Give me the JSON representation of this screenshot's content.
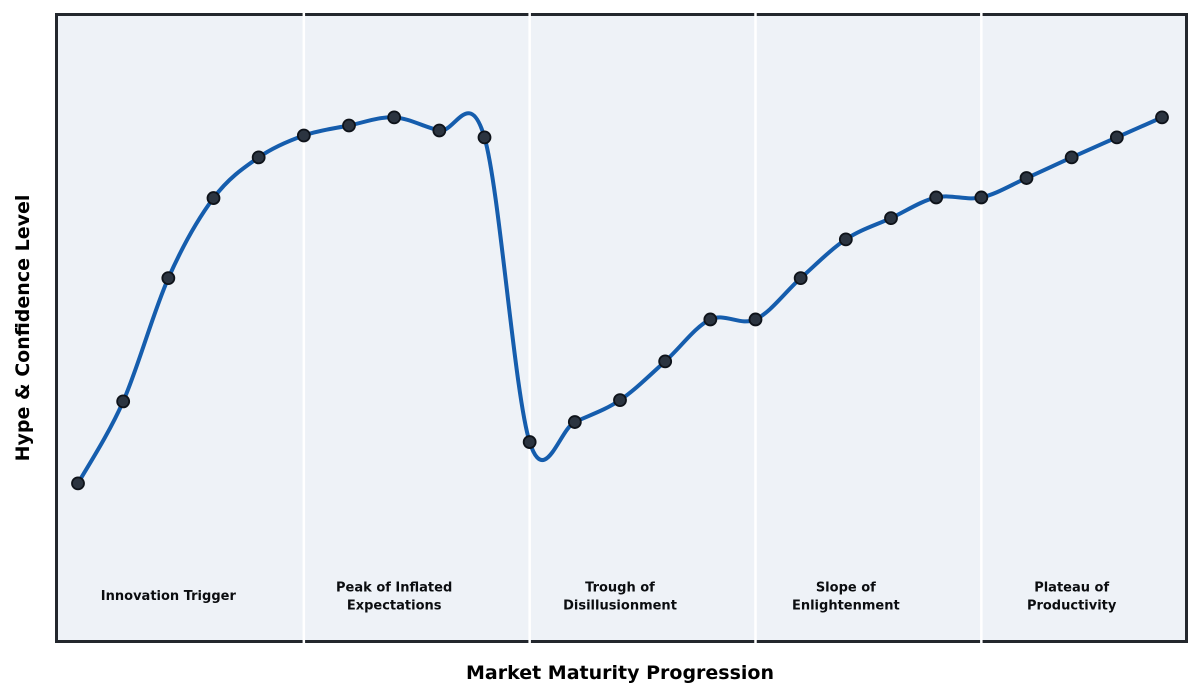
{
  "chart_data": {
    "type": "line",
    "title": "",
    "xlabel": "Market Maturity Progression",
    "ylabel": "Hype & Confidence Level",
    "x": [
      0,
      1,
      2,
      3,
      4,
      5,
      6,
      7,
      8,
      9,
      10,
      11,
      12,
      13,
      14,
      15,
      16,
      17,
      18,
      19,
      20,
      21,
      22,
      23,
      24
    ],
    "y": [
      25.2,
      38.3,
      58.0,
      70.8,
      77.3,
      80.8,
      82.4,
      83.7,
      81.6,
      80.5,
      31.8,
      35.0,
      38.5,
      44.7,
      51.4,
      51.4,
      58.0,
      64.2,
      67.6,
      70.9,
      70.9,
      74.0,
      77.3,
      80.5,
      83.7
    ],
    "ylim": [
      0,
      100
    ],
    "xlim": [
      -0.5,
      24.6
    ],
    "grid": false,
    "legend": "none",
    "curve_style": "smooth-spline-with-markers",
    "phase_boundaries_x": [
      5,
      10,
      15,
      20
    ],
    "phases": [
      {
        "label": "Innovation Trigger",
        "center_index": 2
      },
      {
        "label": "Peak of Inflated\nExpectations",
        "center_index": 7
      },
      {
        "label": "Trough of\nDisillusionment",
        "center_index": 12
      },
      {
        "label": "Slope of\nEnlightenment",
        "center_index": 17
      },
      {
        "label": "Plateau of\nProductivity",
        "center_index": 22
      }
    ],
    "colors": {
      "line": "#155dad",
      "marker_fill": "#2b3440",
      "marker_edge": "#0e131a",
      "plot_background": "#eef2f7",
      "phase_divider": "#ffffff",
      "frame_border": "#23272d",
      "label_text": "#0b0d10",
      "page_background": "#ffffff"
    }
  }
}
